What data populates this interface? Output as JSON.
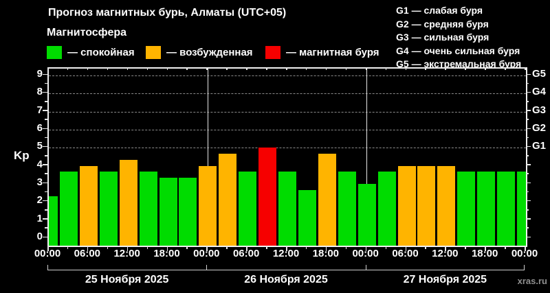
{
  "header": {
    "title": "Прогноз магнитных бурь, Алматы (UTC+05)",
    "subtitle": "Магнитосфера",
    "watermark": "xras.ru"
  },
  "legend": {
    "items": [
      {
        "name": "quiet",
        "label": "— спокойная",
        "color": "#00dc00"
      },
      {
        "name": "excited",
        "label": "— возбужденная",
        "color": "#ffb400"
      },
      {
        "name": "storm",
        "label": "— магнитная буря",
        "color": "#f60000"
      }
    ]
  },
  "g_legend": [
    "G1 — слабая буря",
    "G2 — средняя буря",
    "G3 — сильная буря",
    "G4 — очень сильная буря",
    "G5 — экстремальная буря"
  ],
  "chart_data": {
    "type": "bar",
    "title": "Прогноз магнитных бурь, Алматы (UTC+05)",
    "ylabel": "Kp",
    "ylim": [
      0,
      9
    ],
    "y_ticks": [
      0,
      1,
      2,
      3,
      4,
      5,
      6,
      7,
      8,
      9
    ],
    "grid": "dashed horizontal lines at G-storm levels only",
    "g_levels": [
      {
        "kp": 5,
        "label": "G1"
      },
      {
        "kp": 6,
        "label": "G2"
      },
      {
        "kp": 7,
        "label": "G3"
      },
      {
        "kp": 8,
        "label": "G4"
      },
      {
        "kp": 9,
        "label": "G5"
      }
    ],
    "thresholds": {
      "excited": 4,
      "storm": 5
    },
    "colors": {
      "quiet": "#00dc00",
      "excited": "#ffb400",
      "storm": "#f60000"
    },
    "x_tick_labels": [
      "00:00",
      "06:00",
      "12:00",
      "18:00",
      "00:00",
      "06:00",
      "12:00",
      "18:00",
      "00:00",
      "06:00",
      "12:00",
      "18:00",
      "00:00"
    ],
    "days": [
      {
        "label": "25 Ноября 2025"
      },
      {
        "label": "26 Ноября 2025"
      },
      {
        "label": "27 Ноября 2025"
      }
    ],
    "bars": [
      {
        "day": "25",
        "time": "00:00",
        "kp": 2.33
      },
      {
        "day": "25",
        "time": "03:00",
        "kp": 3.67
      },
      {
        "day": "25",
        "time": "06:00",
        "kp": 4.0
      },
      {
        "day": "25",
        "time": "09:00",
        "kp": 3.67
      },
      {
        "day": "25",
        "time": "12:00",
        "kp": 4.33
      },
      {
        "day": "25",
        "time": "15:00",
        "kp": 3.67
      },
      {
        "day": "25",
        "time": "18:00",
        "kp": 3.33
      },
      {
        "day": "25",
        "time": "21:00",
        "kp": 3.33
      },
      {
        "day": "26",
        "time": "00:00",
        "kp": 4.0
      },
      {
        "day": "26",
        "time": "03:00",
        "kp": 4.67
      },
      {
        "day": "26",
        "time": "06:00",
        "kp": 3.67
      },
      {
        "day": "26",
        "time": "09:00",
        "kp": 5.0
      },
      {
        "day": "26",
        "time": "12:00",
        "kp": 3.67
      },
      {
        "day": "26",
        "time": "15:00",
        "kp": 2.67
      },
      {
        "day": "26",
        "time": "18:00",
        "kp": 4.67
      },
      {
        "day": "26",
        "time": "21:00",
        "kp": 3.67
      },
      {
        "day": "27",
        "time": "00:00",
        "kp": 3.0
      },
      {
        "day": "27",
        "time": "03:00",
        "kp": 3.67
      },
      {
        "day": "27",
        "time": "06:00",
        "kp": 4.0
      },
      {
        "day": "27",
        "time": "09:00",
        "kp": 4.0
      },
      {
        "day": "27",
        "time": "12:00",
        "kp": 4.0
      },
      {
        "day": "27",
        "time": "15:00",
        "kp": 3.67
      },
      {
        "day": "27",
        "time": "18:00",
        "kp": 3.67
      },
      {
        "day": "27",
        "time": "21:00",
        "kp": 3.67
      },
      {
        "day": "28",
        "time": "00:00",
        "kp": 3.67
      }
    ]
  }
}
